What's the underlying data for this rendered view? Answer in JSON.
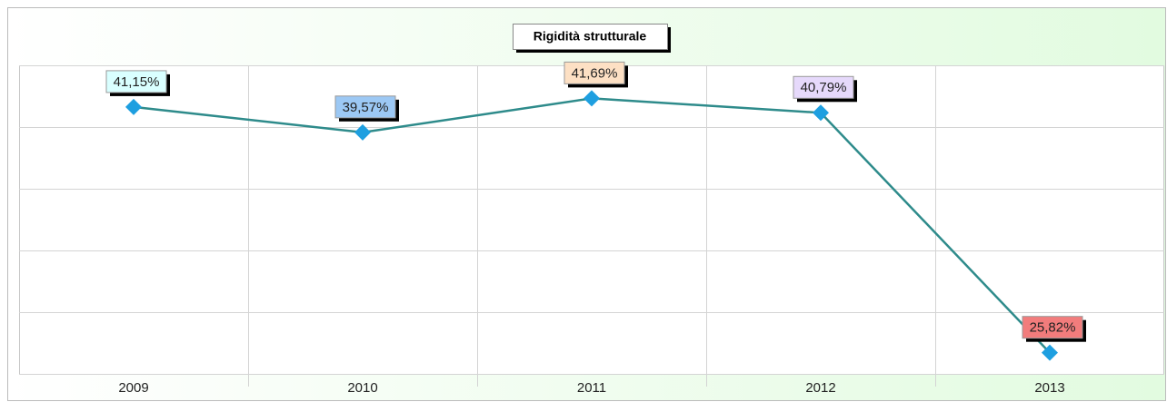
{
  "chart_data": {
    "type": "line",
    "title": "Rigidità strutturale",
    "categories": [
      "2009",
      "2010",
      "2011",
      "2012",
      "2013"
    ],
    "values": [
      41.15,
      39.57,
      41.69,
      40.79,
      25.82
    ],
    "value_labels": [
      "41,15%",
      "39,57%",
      "41,69%",
      "40,79%",
      "25,82%"
    ],
    "label_colors": [
      "#d9ffff",
      "#9cc8f4",
      "#fde0c4",
      "#e6d9fb",
      "#f27c7c"
    ],
    "color": "#2e8b8b",
    "marker_color": "#1e9fe0",
    "ylim": [
      24.5,
      43.75
    ],
    "yticks": [
      24.5,
      28.35,
      32.2,
      36.05,
      39.9,
      43.75
    ],
    "grid": true
  }
}
